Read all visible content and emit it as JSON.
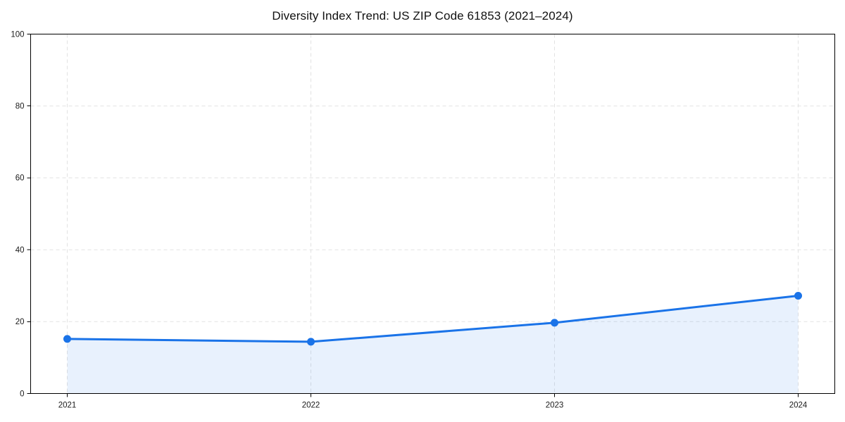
{
  "page": {
    "background_color": "#ffffff"
  },
  "chart_data": {
    "type": "area",
    "title": "Diversity Index Trend: US ZIP Code 61853 (2021–2024)",
    "categories": [
      "2021",
      "2022",
      "2023",
      "2024"
    ],
    "values": [
      15.2,
      14.4,
      19.7,
      27.2
    ],
    "xlabel": "",
    "ylabel": "",
    "ylim": [
      0,
      100
    ],
    "yticks": [
      0,
      20,
      40,
      60,
      80,
      100
    ],
    "grid": "dashed",
    "legend_position": "none",
    "line_color": "#1a73e8",
    "marker_color": "#1a73e8",
    "fill_color": "#1a73e8",
    "fill_opacity": 0.1,
    "grid_color": "#e2e2e2",
    "axis_color": "#000000",
    "tick_label_color": "#1a1a1a",
    "title_color": "#111111"
  }
}
